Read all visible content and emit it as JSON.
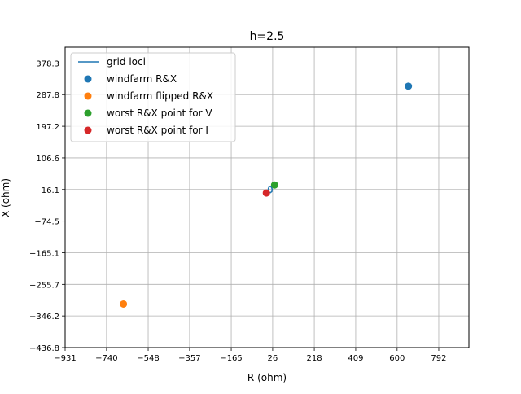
{
  "chart_data": {
    "type": "scatter",
    "title": "h=2.5",
    "xlabel": "R (ohm)",
    "ylabel": "X (ohm)",
    "xlim": [
      -931,
      931
    ],
    "ylim": [
      -436.8,
      423.6
    ],
    "xticks": [
      -931,
      -740,
      -548,
      -357,
      -165,
      26,
      218,
      409,
      600,
      792
    ],
    "yticks": [
      -436.8,
      -346.2,
      -255.7,
      -165.1,
      -74.5,
      16.1,
      106.6,
      197.2,
      287.8,
      378.3
    ],
    "grid": true,
    "legend_position": "top-left",
    "series": [
      {
        "name": "grid loci",
        "kind": "line",
        "color": "#1f77b4",
        "points": [
          [
            5,
            16.1
          ],
          [
            8,
            22
          ],
          [
            12,
            25
          ],
          [
            17,
            25
          ],
          [
            21,
            22
          ],
          [
            24,
            16.1
          ],
          [
            22,
            10
          ],
          [
            16,
            7
          ],
          [
            10,
            8
          ],
          [
            5,
            16.1
          ]
        ]
      },
      {
        "name": "windfarm R&X",
        "kind": "scatter",
        "color": "#1f77b4",
        "points": [
          [
            652,
            312
          ]
        ]
      },
      {
        "name": "windfarm flipped R&X",
        "kind": "scatter",
        "color": "#ff7f0e",
        "points": [
          [
            -662,
            -312
          ]
        ]
      },
      {
        "name": "worst R&X point for V",
        "kind": "scatter",
        "color": "#2ca02c",
        "points": [
          [
            35,
            29
          ]
        ]
      },
      {
        "name": "worst R&X point for I",
        "kind": "scatter",
        "color": "#d62728",
        "points": [
          [
            -3,
            6
          ]
        ]
      }
    ]
  }
}
